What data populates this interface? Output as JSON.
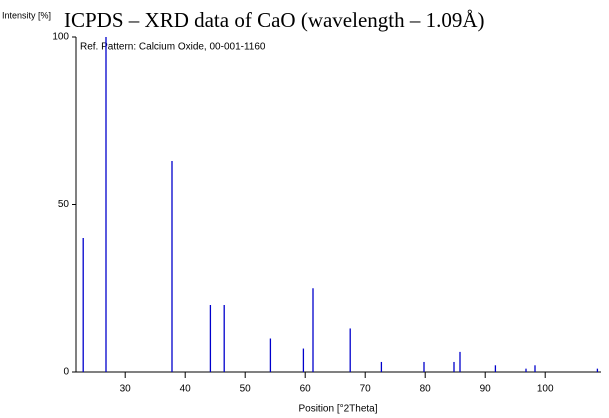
{
  "chart_data": {
    "type": "stick",
    "title": "ICPDS – XRD data of CaO (wavelength – 1.09Å)",
    "y_label": "Intensity [%]",
    "x_label": "Position [°2Theta]",
    "annotation": "Ref. Pattern: Calcium Oxide, 00-001-1160",
    "color": "#0000cc",
    "x": [
      23.0,
      26.8,
      37.8,
      44.2,
      46.5,
      54.2,
      59.7,
      61.3,
      67.5,
      72.7,
      79.8,
      84.8,
      85.8,
      91.7,
      96.8,
      98.3,
      108.7
    ],
    "values": [
      40,
      100,
      63,
      20,
      20,
      10,
      7,
      25,
      13,
      3,
      3,
      3,
      6,
      2,
      1,
      2,
      1
    ],
    "xlim": [
      21.8,
      109.3
    ],
    "ylim": [
      0,
      100
    ],
    "xticks": [
      30,
      40,
      50,
      60,
      70,
      80,
      90,
      100
    ],
    "yticks": [
      0,
      50,
      100
    ]
  }
}
